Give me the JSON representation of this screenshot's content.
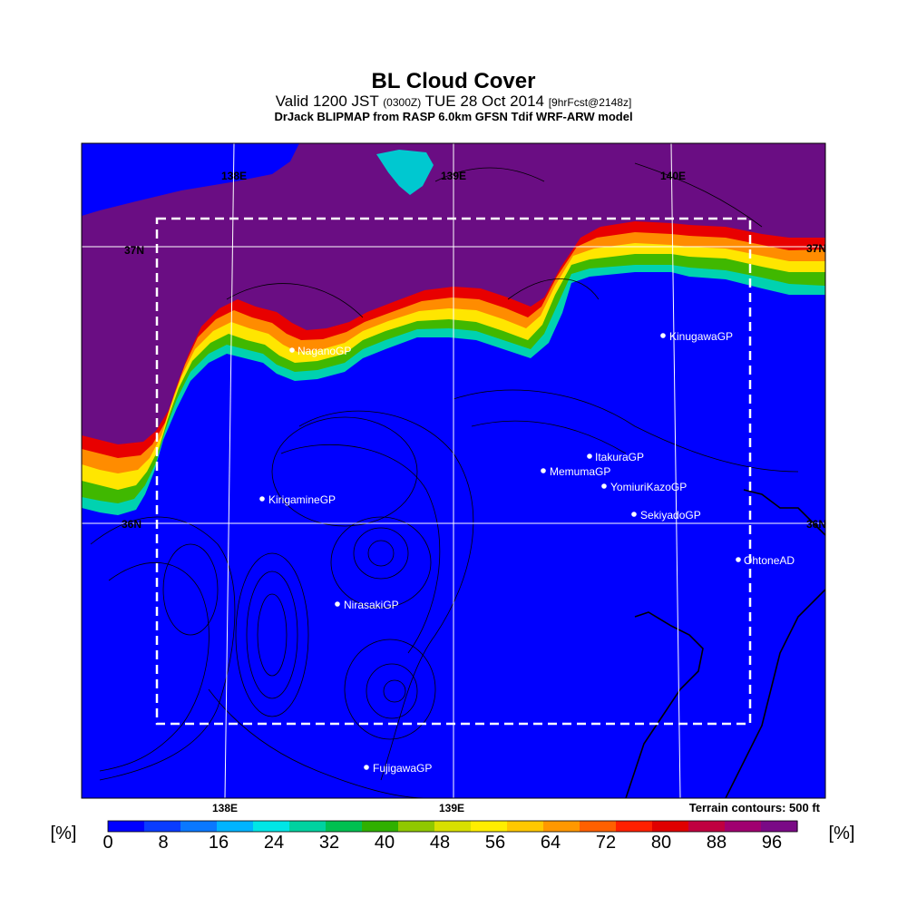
{
  "title": "BL Cloud Cover",
  "subtitle": {
    "valid": "Valid 1200 JST",
    "utc": "(0300Z)",
    "date": "TUE 28 Oct 2014",
    "forecast": "[9hrFcst@2148z]"
  },
  "source": "DrJack BLIPMAP from RASP 6.0km GFSN Tdif WRF-ARW model",
  "terrain_note": "Terrain contours: 500 ft",
  "colors": {
    "clear": "#0000ff",
    "overcast": "#6a0d83",
    "frame": "#000000",
    "grid": "#ffffff"
  },
  "grid_labels": {
    "top_lon": [
      "138E",
      "139E",
      "140E"
    ],
    "bottom_lon": [
      "138E",
      "139E"
    ],
    "lat_left": [
      "37N",
      "36N"
    ],
    "lat_right": [
      "37N",
      "36N"
    ]
  },
  "sites": [
    {
      "name": "NaganoGP"
    },
    {
      "name": "KinugawaGP"
    },
    {
      "name": "ItakuraGP"
    },
    {
      "name": "MemumaGP"
    },
    {
      "name": "YomiuriKazoGP"
    },
    {
      "name": "KirigamineGP"
    },
    {
      "name": "SekiyadoGP"
    },
    {
      "name": "OhtoneAD"
    },
    {
      "name": "NirasakiGP"
    },
    {
      "name": "FujigawaGP"
    }
  ],
  "colorbar": {
    "unit_left": "[%]",
    "unit_right": "[%]",
    "ticks": [
      "0",
      "8",
      "16",
      "24",
      "32",
      "40",
      "48",
      "56",
      "64",
      "72",
      "80",
      "88",
      "96"
    ],
    "colors": [
      "#0000ff",
      "#0a3cff",
      "#0a78ff",
      "#00b4ff",
      "#00e6e6",
      "#00d2a0",
      "#00c050",
      "#30b000",
      "#90c800",
      "#d8e000",
      "#ffee00",
      "#ffc800",
      "#ff9800",
      "#ff6000",
      "#ff2000",
      "#e00000",
      "#c00040",
      "#a00070",
      "#7a0a86"
    ]
  }
}
